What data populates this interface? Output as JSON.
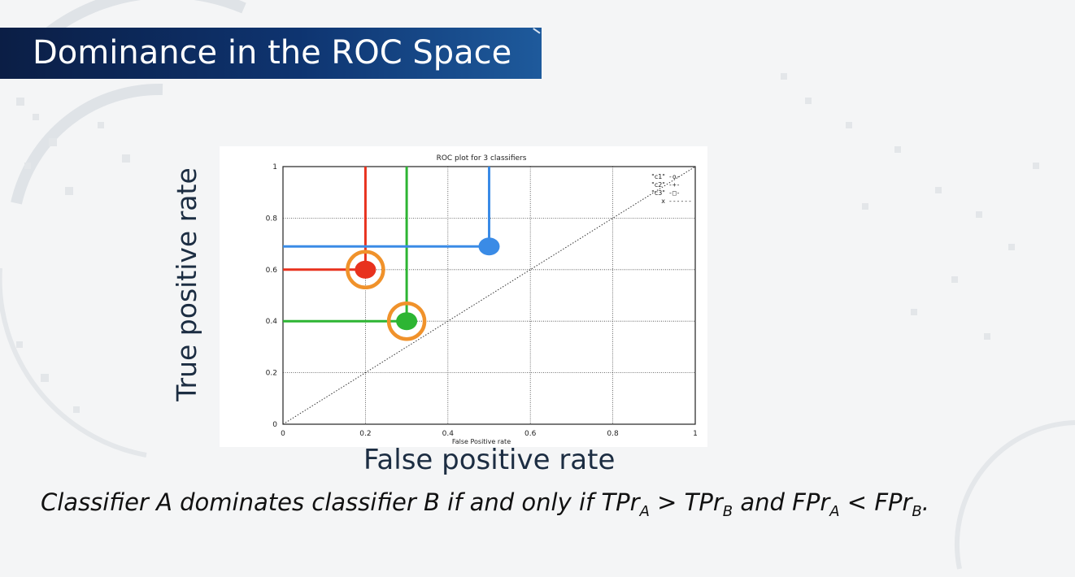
{
  "slide": {
    "title": "Dominance in the ROC Space",
    "y_axis_caption": "True positive rate",
    "x_axis_caption": "False positive rate",
    "statement": {
      "p1": "Classifier A dominates classifier B if and only if TPr",
      "s1": "A",
      "p2": " > TPr",
      "s2": "B",
      "p3": " and FPr",
      "s3": "A",
      "p4": " < FPr",
      "s4": "B",
      "p5": "."
    }
  },
  "chart_data": {
    "type": "scatter",
    "title": "ROC plot for 3 classifiers",
    "xlabel": "False Positive rate",
    "ylabel": "",
    "xlim": [
      0,
      1
    ],
    "ylim": [
      0,
      1
    ],
    "x_ticks": [
      "0",
      "0.2",
      "0.4",
      "0.6",
      "0.8",
      "1"
    ],
    "y_ticks": [
      "0",
      "0.2",
      "0.4",
      "0.6",
      "0.8",
      "1"
    ],
    "grid": true,
    "legend_position": "top-right",
    "legend": [
      {
        "label": "\"c1\"",
        "marker": "-o-"
      },
      {
        "label": "\"c2\"",
        "marker": "-+-"
      },
      {
        "label": "\"c3\"",
        "marker": "-□-"
      },
      {
        "label": "x",
        "marker": "------"
      }
    ],
    "diagonal": [
      [
        0,
        0
      ],
      [
        1,
        1
      ]
    ],
    "points": [
      {
        "x": 0.2,
        "y": 0.6,
        "color": "#e8321e",
        "highlighted": true
      },
      {
        "x": 0.3,
        "y": 0.4,
        "color": "#2db533",
        "highlighted": true
      },
      {
        "x": 0.5,
        "y": 0.69,
        "color": "#3a8be6",
        "highlighted": false
      }
    ],
    "highlight_color": "#f0922b"
  }
}
